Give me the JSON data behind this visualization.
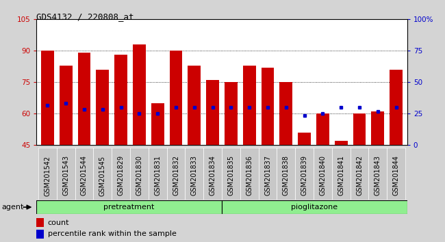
{
  "title": "GDS4132 / 220808_at",
  "samples": [
    "GSM201542",
    "GSM201543",
    "GSM201544",
    "GSM201545",
    "GSM201829",
    "GSM201830",
    "GSM201831",
    "GSM201832",
    "GSM201833",
    "GSM201834",
    "GSM201835",
    "GSM201836",
    "GSM201837",
    "GSM201838",
    "GSM201839",
    "GSM201840",
    "GSM201841",
    "GSM201842",
    "GSM201843",
    "GSM201844"
  ],
  "bar_heights": [
    90,
    83,
    89,
    81,
    88,
    93,
    65,
    90,
    83,
    76,
    75,
    83,
    82,
    75,
    51,
    60,
    47,
    60,
    61,
    81
  ],
  "dot_positions": [
    64,
    65,
    62,
    62,
    63,
    60,
    60,
    63,
    63,
    63,
    63,
    63,
    63,
    63,
    59,
    60,
    63,
    63,
    61,
    63
  ],
  "bar_color": "#cc0000",
  "dot_color": "#0000cc",
  "ylim_left": [
    45,
    105
  ],
  "ylim_right": [
    0,
    100
  ],
  "right_ticks": [
    0,
    25,
    50,
    75,
    100
  ],
  "right_tick_labels": [
    "0",
    "25",
    "50",
    "75",
    "100%"
  ],
  "left_ticks": [
    45,
    60,
    75,
    90,
    105
  ],
  "gridlines": [
    60,
    75,
    90
  ],
  "n_pretreatment": 10,
  "n_pioglitazone": 10,
  "agent_label": "agent",
  "pretreatment_label": "pretreatment",
  "pioglitazone_label": "pioglitazone",
  "legend_count": "count",
  "legend_percentile": "percentile rank within the sample",
  "bg_color": "#d4d4d4",
  "plot_bg_color": "#ffffff",
  "green_color": "#90ee90",
  "bar_width": 0.7,
  "title_fontsize": 9,
  "tick_label_fontsize": 7,
  "axis_tick_fontsize": 7.5,
  "legend_fontsize": 8
}
